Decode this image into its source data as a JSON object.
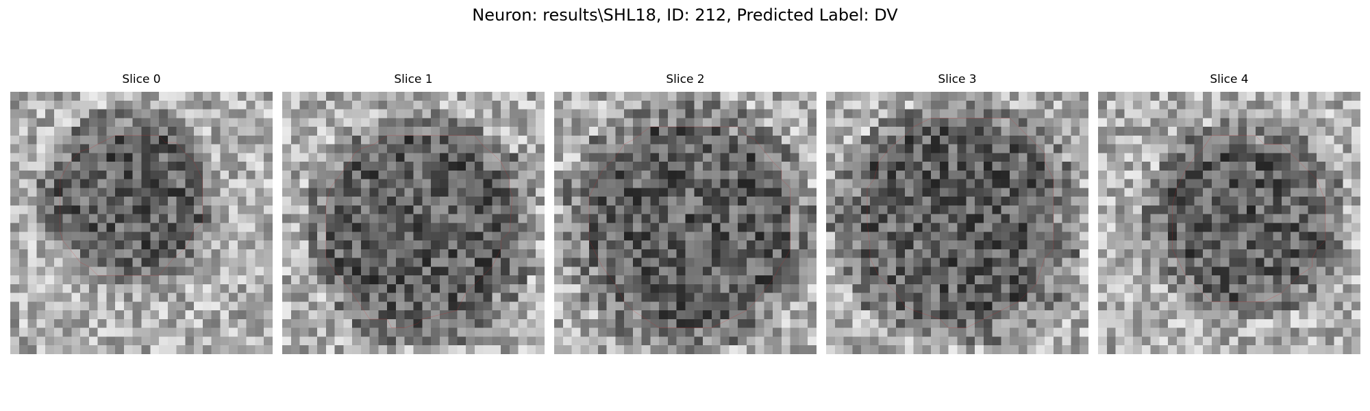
{
  "figure": {
    "title": "Neuron: results\\SHL18, ID: 212, Predicted Label: DV"
  },
  "panels": [
    {
      "title": "Slice 0"
    },
    {
      "title": "Slice 1"
    },
    {
      "title": "Slice 2"
    },
    {
      "title": "Slice 3"
    },
    {
      "title": "Slice 4"
    }
  ],
  "colors": {
    "contour": "#e31a1c",
    "colormap": "grayscale"
  }
}
